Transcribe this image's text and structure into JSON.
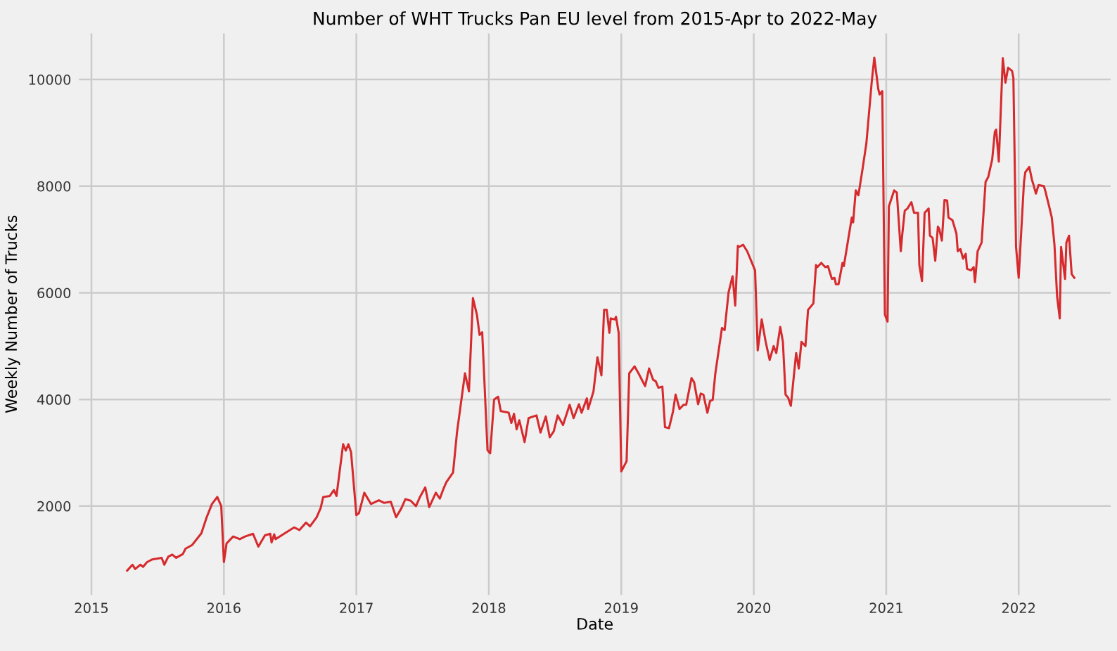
{
  "chart_data": {
    "type": "line",
    "title": "Number of WHT Trucks Pan EU level from 2015-Apr to 2022-May",
    "xlabel": "Date",
    "ylabel": "Weekly Number of Trucks",
    "xlim": [
      2014.9,
      2022.7
    ],
    "xticks": [
      2015,
      2016,
      2017,
      2018,
      2019,
      2020,
      2021,
      2022
    ],
    "ylim": [
      320,
      10880
    ],
    "yticks": [
      2000,
      4000,
      6000,
      8000,
      10000
    ],
    "grid": true,
    "marker": "none",
    "line_style": "solid",
    "series": [
      {
        "color": "#d62b2e",
        "x": [
          2015.27,
          2015.31,
          2015.33,
          2015.37,
          2015.39,
          2015.42,
          2015.46,
          2015.53,
          2015.55,
          2015.58,
          2015.61,
          2015.64,
          2015.69,
          2015.71,
          2015.76,
          2015.83,
          2015.87,
          2015.91,
          2015.95,
          2015.98,
          2016.0,
          2016.02,
          2016.07,
          2016.12,
          2016.16,
          2016.22,
          2016.26,
          2016.31,
          2016.35,
          2016.36,
          2016.38,
          2016.39,
          2016.46,
          2016.53,
          2016.57,
          2016.62,
          2016.65,
          2016.7,
          2016.73,
          2016.75,
          2016.8,
          2016.83,
          2016.85,
          2016.9,
          2016.92,
          2016.94,
          2016.96,
          2017.0,
          2017.02,
          2017.06,
          2017.11,
          2017.17,
          2017.21,
          2017.26,
          2017.3,
          2017.34,
          2017.37,
          2017.41,
          2017.45,
          2017.48,
          2017.52,
          2017.55,
          2017.6,
          2017.63,
          2017.66,
          2017.68,
          2017.73,
          2017.76,
          2017.79,
          2017.82,
          2017.85,
          2017.88,
          2017.91,
          2017.93,
          2017.95,
          2017.99,
          2018.01,
          2018.04,
          2018.07,
          2018.09,
          2018.15,
          2018.17,
          2018.19,
          2018.21,
          2018.23,
          2018.27,
          2018.3,
          2018.36,
          2018.39,
          2018.43,
          2018.46,
          2018.49,
          2018.52,
          2018.56,
          2018.61,
          2018.64,
          2018.68,
          2018.7,
          2018.74,
          2018.75,
          2018.79,
          2018.82,
          2018.85,
          2018.87,
          2018.89,
          2018.91,
          2018.92,
          2018.95,
          2018.96,
          2018.98,
          2019.0,
          2019.04,
          2019.06,
          2019.1,
          2019.13,
          2019.18,
          2019.21,
          2019.24,
          2019.26,
          2019.28,
          2019.31,
          2019.33,
          2019.36,
          2019.39,
          2019.41,
          2019.44,
          2019.47,
          2019.49,
          2019.53,
          2019.55,
          2019.58,
          2019.6,
          2019.62,
          2019.65,
          2019.67,
          2019.69,
          2019.71,
          2019.76,
          2019.78,
          2019.81,
          2019.84,
          2019.86,
          2019.88,
          2019.89,
          2019.92,
          2019.95,
          2019.98,
          2020.01,
          2020.03,
          2020.06,
          2020.09,
          2020.12,
          2020.15,
          2020.17,
          2020.2,
          2020.22,
          2020.24,
          2020.26,
          2020.28,
          2020.32,
          2020.34,
          2020.36,
          2020.39,
          2020.41,
          2020.45,
          2020.47,
          2020.48,
          2020.51,
          2020.54,
          2020.56,
          2020.59,
          2020.61,
          2020.62,
          2020.64,
          2020.67,
          2020.68,
          2020.74,
          2020.75,
          2020.77,
          2020.79,
          2020.82,
          2020.85,
          2020.89,
          2020.91,
          2020.94,
          2020.95,
          2020.97,
          2020.99,
          2021.01,
          2021.02,
          2021.06,
          2021.08,
          2021.11,
          2021.12,
          2021.14,
          2021.16,
          2021.19,
          2021.21,
          2021.24,
          2021.25,
          2021.27,
          2021.29,
          2021.32,
          2021.33,
          2021.35,
          2021.37,
          2021.39,
          2021.4,
          2021.42,
          2021.44,
          2021.46,
          2021.47,
          2021.5,
          2021.53,
          2021.54,
          2021.56,
          2021.58,
          2021.6,
          2021.61,
          2021.64,
          2021.66,
          2021.67,
          2021.69,
          2021.72,
          2021.75,
          2021.77,
          2021.8,
          2021.82,
          2021.83,
          2021.85,
          2021.88,
          2021.9,
          2021.92,
          2021.95,
          2021.96,
          2021.98,
          2022.0,
          2022.04,
          2022.05,
          2022.08,
          2022.1,
          2022.11,
          2022.13,
          2022.15,
          2022.19,
          2022.2,
          2022.23,
          2022.25,
          2022.27,
          2022.29,
          2022.31,
          2022.32,
          2022.35,
          2022.36,
          2022.38,
          2022.4,
          2022.42
        ],
        "values": [
          790,
          900,
          820,
          900,
          860,
          950,
          1000,
          1030,
          900,
          1050,
          1090,
          1030,
          1100,
          1200,
          1270,
          1490,
          1790,
          2040,
          2170,
          2000,
          950,
          1300,
          1430,
          1380,
          1430,
          1480,
          1240,
          1450,
          1480,
          1320,
          1470,
          1380,
          1490,
          1600,
          1550,
          1690,
          1620,
          1790,
          1960,
          2170,
          2190,
          2300,
          2190,
          3160,
          3040,
          3160,
          3010,
          1830,
          1870,
          2250,
          2040,
          2110,
          2060,
          2080,
          1790,
          1960,
          2130,
          2100,
          2000,
          2170,
          2350,
          1980,
          2250,
          2140,
          2340,
          2450,
          2630,
          3390,
          3940,
          4490,
          4150,
          5900,
          5590,
          5210,
          5260,
          3050,
          2990,
          4000,
          4050,
          3780,
          3750,
          3560,
          3730,
          3440,
          3610,
          3200,
          3650,
          3700,
          3380,
          3680,
          3290,
          3400,
          3700,
          3520,
          3900,
          3650,
          3910,
          3750,
          4020,
          3820,
          4150,
          4790,
          4450,
          5680,
          5680,
          5250,
          5520,
          5500,
          5550,
          5250,
          2650,
          2840,
          4490,
          4620,
          4490,
          4250,
          4580,
          4370,
          4340,
          4220,
          4240,
          3480,
          3460,
          3770,
          4090,
          3820,
          3900,
          3900,
          4400,
          4320,
          3910,
          4110,
          4090,
          3750,
          3970,
          3990,
          4490,
          5340,
          5300,
          6010,
          6310,
          5760,
          6880,
          6860,
          6900,
          6780,
          6600,
          6420,
          4920,
          5500,
          5080,
          4740,
          5000,
          4870,
          5360,
          5080,
          4090,
          4030,
          3880,
          4870,
          4580,
          5080,
          5000,
          5680,
          5800,
          6520,
          6480,
          6560,
          6480,
          6500,
          6260,
          6280,
          6160,
          6160,
          6560,
          6500,
          7410,
          7320,
          7920,
          7830,
          8300,
          8800,
          9940,
          10410,
          9820,
          9720,
          9780,
          5590,
          5460,
          7620,
          7920,
          7880,
          6780,
          7070,
          7540,
          7580,
          7700,
          7500,
          7500,
          6520,
          6220,
          7500,
          7580,
          7070,
          7030,
          6600,
          7240,
          7200,
          6980,
          7740,
          7730,
          7410,
          7360,
          7110,
          6780,
          6820,
          6640,
          6730,
          6450,
          6420,
          6480,
          6200,
          6780,
          6940,
          8080,
          8170,
          8500,
          9020,
          9060,
          8460,
          10400,
          9940,
          10220,
          10160,
          10030,
          6860,
          6280,
          8080,
          8260,
          8360,
          8120,
          8040,
          7860,
          8020,
          8000,
          7920,
          7620,
          7410,
          6900,
          5930,
          5520,
          6860,
          6260,
          6940,
          7070,
          6350,
          6280
        ]
      }
    ]
  }
}
